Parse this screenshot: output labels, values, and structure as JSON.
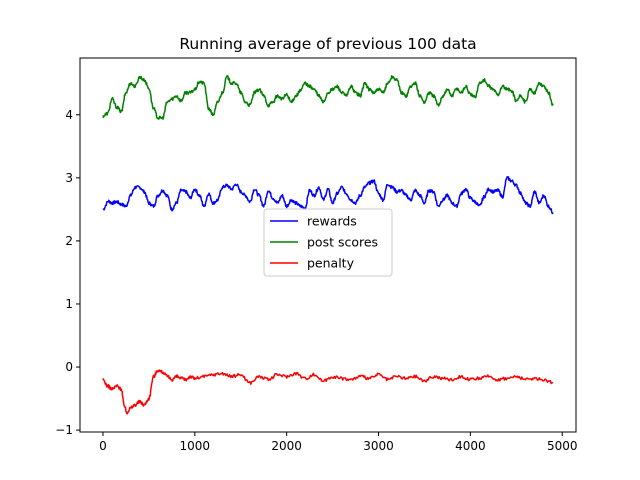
{
  "chart_data": {
    "type": "line",
    "title": "Running average of previous 100 data",
    "xlabel": "",
    "ylabel": "",
    "xlim": [
      -250,
      5150
    ],
    "ylim": [
      -1.03,
      4.9
    ],
    "xticks": [
      0,
      1000,
      2000,
      3000,
      4000,
      5000
    ],
    "xtick_labels": [
      "0",
      "1000",
      "2000",
      "3000",
      "4000",
      "5000"
    ],
    "yticks": [
      -1,
      0,
      1,
      2,
      3,
      4
    ],
    "ytick_labels": [
      "−1",
      "0",
      "1",
      "2",
      "3",
      "4"
    ],
    "grid": false,
    "legend_position": "center",
    "series": [
      {
        "name": "rewards",
        "color": "#0000ff",
        "x": [
          0,
          60,
          100,
          150,
          200,
          250,
          300,
          350,
          400,
          450,
          500,
          550,
          600,
          650,
          700,
          750,
          800,
          850,
          900,
          950,
          1000,
          1050,
          1100,
          1150,
          1200,
          1250,
          1300,
          1350,
          1400,
          1450,
          1500,
          1550,
          1600,
          1650,
          1700,
          1750,
          1800,
          1850,
          1900,
          1950,
          2000,
          2050,
          2100,
          2150,
          2200,
          2250,
          2300,
          2350,
          2400,
          2450,
          2500,
          2550,
          2600,
          2650,
          2700,
          2750,
          2800,
          2850,
          2900,
          2950,
          3000,
          3050,
          3100,
          3150,
          3200,
          3250,
          3300,
          3350,
          3400,
          3450,
          3500,
          3550,
          3600,
          3650,
          3700,
          3750,
          3800,
          3850,
          3900,
          3950,
          4000,
          4050,
          4100,
          4150,
          4200,
          4250,
          4300,
          4350,
          4400,
          4450,
          4500,
          4550,
          4600,
          4650,
          4700,
          4750,
          4800,
          4850,
          4900
        ],
        "values": [
          2.5,
          2.63,
          2.6,
          2.62,
          2.58,
          2.55,
          2.72,
          2.85,
          2.85,
          2.78,
          2.6,
          2.55,
          2.72,
          2.8,
          2.72,
          2.5,
          2.6,
          2.8,
          2.78,
          2.68,
          2.82,
          2.72,
          2.55,
          2.75,
          2.6,
          2.65,
          2.85,
          2.88,
          2.82,
          2.9,
          2.78,
          2.72,
          2.62,
          2.82,
          2.72,
          2.55,
          2.8,
          2.68,
          2.6,
          2.72,
          2.55,
          2.65,
          2.6,
          2.55,
          2.52,
          2.8,
          2.72,
          2.85,
          2.65,
          2.82,
          2.6,
          2.75,
          2.85,
          2.75,
          2.65,
          2.6,
          2.72,
          2.85,
          2.92,
          2.95,
          2.75,
          2.65,
          2.9,
          2.85,
          2.78,
          2.8,
          2.72,
          2.65,
          2.8,
          2.72,
          2.6,
          2.8,
          2.78,
          2.55,
          2.65,
          2.72,
          2.6,
          2.55,
          2.75,
          2.82,
          2.68,
          2.62,
          2.55,
          2.7,
          2.82,
          2.78,
          2.8,
          2.7,
          3.0,
          2.95,
          2.88,
          2.75,
          2.6,
          2.55,
          2.78,
          2.6,
          2.72,
          2.55,
          2.45
        ]
      },
      {
        "name": "post scores",
        "color": "#008000",
        "x": [
          0,
          50,
          100,
          150,
          200,
          250,
          300,
          350,
          400,
          450,
          500,
          550,
          600,
          650,
          700,
          750,
          800,
          850,
          900,
          950,
          1000,
          1050,
          1100,
          1150,
          1200,
          1250,
          1300,
          1350,
          1400,
          1450,
          1500,
          1550,
          1600,
          1650,
          1700,
          1750,
          1800,
          1850,
          1900,
          1950,
          2000,
          2050,
          2100,
          2150,
          2200,
          2250,
          2300,
          2350,
          2400,
          2450,
          2500,
          2550,
          2600,
          2650,
          2700,
          2750,
          2800,
          2850,
          2900,
          2950,
          3000,
          3050,
          3100,
          3150,
          3200,
          3250,
          3300,
          3350,
          3400,
          3450,
          3500,
          3550,
          3600,
          3650,
          3700,
          3750,
          3800,
          3850,
          3900,
          3950,
          4000,
          4050,
          4100,
          4150,
          4200,
          4250,
          4300,
          4350,
          4400,
          4450,
          4500,
          4550,
          4600,
          4650,
          4700,
          4750,
          4800,
          4850,
          4900
        ],
        "values": [
          3.98,
          4.02,
          4.25,
          4.12,
          4.05,
          4.35,
          4.5,
          4.45,
          4.6,
          4.55,
          4.42,
          4.1,
          3.95,
          3.95,
          4.2,
          4.25,
          4.3,
          4.22,
          4.35,
          4.35,
          4.4,
          4.52,
          4.5,
          4.1,
          4.0,
          4.2,
          4.35,
          4.6,
          4.5,
          4.5,
          4.35,
          4.2,
          4.15,
          4.35,
          4.4,
          4.3,
          4.15,
          4.2,
          4.3,
          4.25,
          4.32,
          4.2,
          4.3,
          4.38,
          4.5,
          4.45,
          4.4,
          4.3,
          4.2,
          4.35,
          4.4,
          4.45,
          4.35,
          4.3,
          4.45,
          4.35,
          4.3,
          4.5,
          4.4,
          4.35,
          4.4,
          4.35,
          4.5,
          4.6,
          4.55,
          4.35,
          4.3,
          4.45,
          4.5,
          4.3,
          4.2,
          4.35,
          4.3,
          4.15,
          4.3,
          4.4,
          4.3,
          4.42,
          4.35,
          4.45,
          4.32,
          4.28,
          4.5,
          4.55,
          4.45,
          4.4,
          4.32,
          4.45,
          4.4,
          4.38,
          4.22,
          4.3,
          4.2,
          4.4,
          4.35,
          4.5,
          4.45,
          4.35,
          4.15
        ]
      },
      {
        "name": "penalty",
        "color": "#ff0000",
        "x": [
          0,
          50,
          100,
          150,
          200,
          230,
          260,
          300,
          350,
          400,
          450,
          500,
          550,
          600,
          650,
          700,
          750,
          800,
          850,
          900,
          950,
          1000,
          1100,
          1200,
          1300,
          1400,
          1500,
          1600,
          1700,
          1800,
          1900,
          2000,
          2100,
          2200,
          2300,
          2400,
          2500,
          2600,
          2700,
          2800,
          2900,
          3000,
          3100,
          3200,
          3300,
          3400,
          3500,
          3600,
          3700,
          3800,
          3900,
          4000,
          4100,
          4200,
          4300,
          4400,
          4500,
          4600,
          4700,
          4800,
          4900
        ],
        "values": [
          -0.2,
          -0.3,
          -0.35,
          -0.3,
          -0.35,
          -0.6,
          -0.72,
          -0.65,
          -0.6,
          -0.55,
          -0.6,
          -0.5,
          -0.15,
          -0.05,
          -0.08,
          -0.15,
          -0.2,
          -0.15,
          -0.18,
          -0.2,
          -0.15,
          -0.18,
          -0.15,
          -0.12,
          -0.1,
          -0.15,
          -0.12,
          -0.25,
          -0.15,
          -0.2,
          -0.12,
          -0.15,
          -0.1,
          -0.18,
          -0.12,
          -0.22,
          -0.15,
          -0.18,
          -0.2,
          -0.15,
          -0.18,
          -0.12,
          -0.2,
          -0.15,
          -0.18,
          -0.15,
          -0.22,
          -0.15,
          -0.18,
          -0.2,
          -0.15,
          -0.2,
          -0.18,
          -0.15,
          -0.2,
          -0.18,
          -0.15,
          -0.2,
          -0.18,
          -0.2,
          -0.25
        ]
      }
    ]
  }
}
